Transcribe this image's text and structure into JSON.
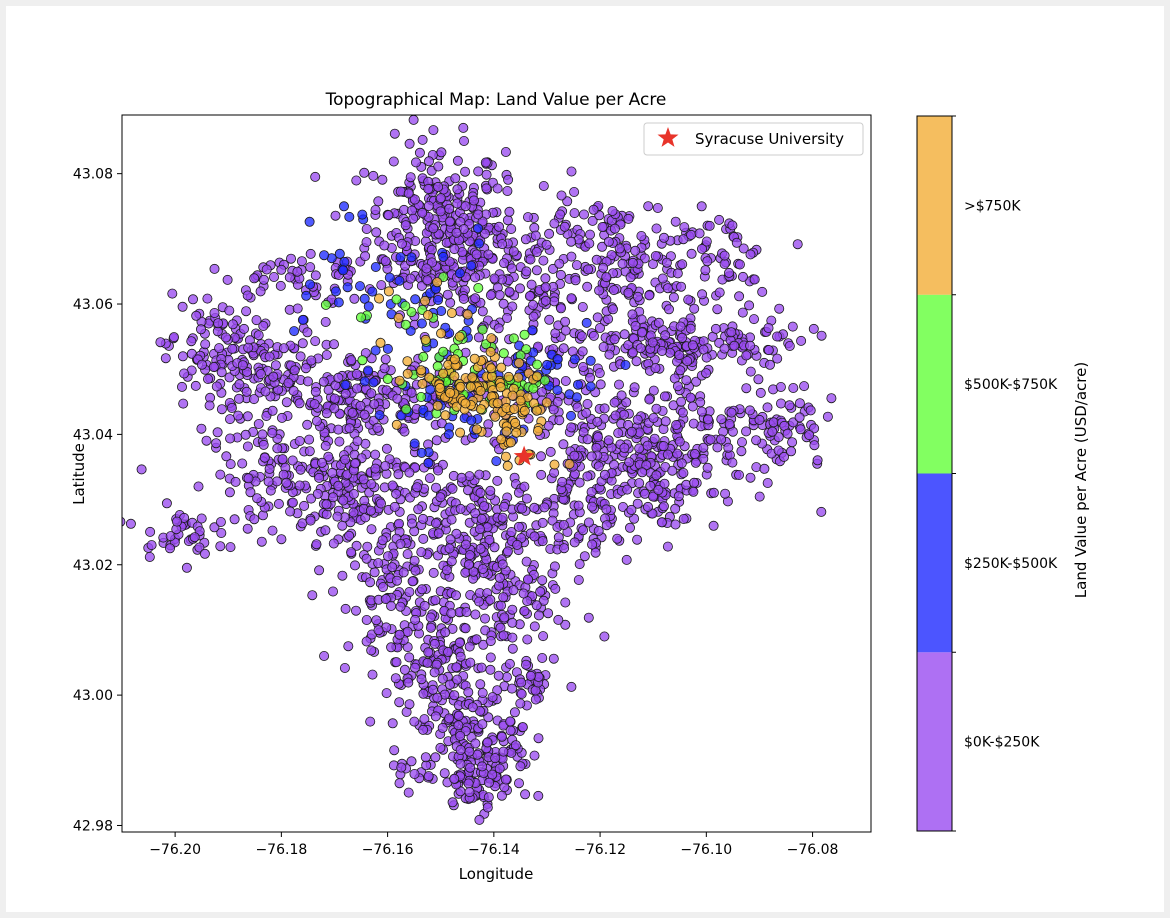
{
  "chart_data": {
    "type": "scatter",
    "title": "Topographical Map: Land Value per Acre",
    "xlabel": "Longitude",
    "ylabel": "Latitude",
    "xlim": [
      -76.21,
      -76.069
    ],
    "ylim": [
      42.979,
      43.089
    ],
    "xticks": [
      -76.2,
      -76.18,
      -76.16,
      -76.14,
      -76.12,
      -76.1,
      -76.08
    ],
    "xtick_labels": [
      "−76.20",
      "−76.18",
      "−76.16",
      "−76.14",
      "−76.12",
      "−76.10",
      "−76.08"
    ],
    "yticks": [
      42.98,
      43.0,
      43.02,
      43.04,
      43.06,
      43.08
    ],
    "ytick_labels": [
      "42.98",
      "43.00",
      "43.02",
      "43.04",
      "43.06",
      "43.08"
    ],
    "grid": false,
    "legend": {
      "position": "upper right",
      "entries": [
        "Syracuse University"
      ]
    },
    "landmark": {
      "name": "Syracuse University",
      "x": -76.1343,
      "y": 43.0366,
      "marker": "star",
      "color": "#e8342a"
    },
    "colorbar": {
      "label": "Land Value per Acre (USD/acre)",
      "bins": [
        {
          "label": "$0K-$250K",
          "color": "#9a4cf0"
        },
        {
          "label": "$250K-$500K",
          "color": "#1f2bff"
        },
        {
          "label": "$500K-$750K",
          "color": "#63ff3a"
        },
        {
          "label": ">$750K",
          "color": "#f3ae37"
        }
      ]
    },
    "series": [
      {
        "category": "$0K-$250K",
        "color": "#9a4cf0",
        "clusters": [
          {
            "x": -76.151,
            "y": 43.072,
            "sx": 0.0065,
            "sy": 0.0065,
            "n": 260
          },
          {
            "x": -76.143,
            "y": 43.067,
            "sx": 0.006,
            "sy": 0.0055,
            "n": 120
          },
          {
            "x": -76.113,
            "y": 43.064,
            "sx": 0.0065,
            "sy": 0.0045,
            "n": 120
          },
          {
            "x": -76.097,
            "y": 43.066,
            "sx": 0.0045,
            "sy": 0.004,
            "n": 60
          },
          {
            "x": -76.108,
            "y": 43.053,
            "sx": 0.01,
            "sy": 0.0022,
            "n": 120
          },
          {
            "x": -76.095,
            "y": 43.055,
            "sx": 0.007,
            "sy": 0.0015,
            "n": 50
          },
          {
            "x": -76.193,
            "y": 43.052,
            "sx": 0.0045,
            "sy": 0.005,
            "n": 110
          },
          {
            "x": -76.18,
            "y": 43.049,
            "sx": 0.005,
            "sy": 0.004,
            "n": 90
          },
          {
            "x": -76.168,
            "y": 43.045,
            "sx": 0.005,
            "sy": 0.004,
            "n": 90
          },
          {
            "x": -76.18,
            "y": 43.034,
            "sx": 0.007,
            "sy": 0.004,
            "n": 110
          },
          {
            "x": -76.164,
            "y": 43.03,
            "sx": 0.008,
            "sy": 0.005,
            "n": 180
          },
          {
            "x": -76.142,
            "y": 43.026,
            "sx": 0.007,
            "sy": 0.005,
            "n": 180
          },
          {
            "x": -76.124,
            "y": 43.029,
            "sx": 0.006,
            "sy": 0.006,
            "n": 120
          },
          {
            "x": -76.116,
            "y": 43.038,
            "sx": 0.0055,
            "sy": 0.004,
            "n": 110
          },
          {
            "x": -76.101,
            "y": 43.04,
            "sx": 0.008,
            "sy": 0.0055,
            "n": 140
          },
          {
            "x": -76.086,
            "y": 43.042,
            "sx": 0.004,
            "sy": 0.0035,
            "n": 60
          },
          {
            "x": -76.107,
            "y": 43.031,
            "sx": 0.004,
            "sy": 0.003,
            "n": 40
          },
          {
            "x": -76.158,
            "y": 43.014,
            "sx": 0.005,
            "sy": 0.006,
            "n": 130
          },
          {
            "x": -76.139,
            "y": 43.014,
            "sx": 0.006,
            "sy": 0.005,
            "n": 110
          },
          {
            "x": -76.15,
            "y": 43.001,
            "sx": 0.0045,
            "sy": 0.006,
            "n": 140
          },
          {
            "x": -76.14,
            "y": 42.993,
            "sx": 0.0035,
            "sy": 0.005,
            "n": 100
          },
          {
            "x": -76.143,
            "y": 42.987,
            "sx": 0.003,
            "sy": 0.002,
            "n": 50
          },
          {
            "x": -76.133,
            "y": 43.002,
            "sx": 0.002,
            "sy": 0.002,
            "n": 30
          },
          {
            "x": -76.153,
            "y": 42.989,
            "sx": 0.004,
            "sy": 0.002,
            "n": 25
          },
          {
            "x": -76.2,
            "y": 43.025,
            "sx": 0.0035,
            "sy": 0.0018,
            "n": 40
          },
          {
            "x": -76.177,
            "y": 43.064,
            "sx": 0.0065,
            "sy": 0.0025,
            "n": 50
          },
          {
            "x": -76.13,
            "y": 43.046,
            "sx": 0.008,
            "sy": 0.0035,
            "n": 80
          },
          {
            "x": -76.158,
            "y": 43.045,
            "sx": 0.006,
            "sy": 0.004,
            "n": 80
          },
          {
            "x": -76.13,
            "y": 43.06,
            "sx": 0.006,
            "sy": 0.004,
            "n": 70
          },
          {
            "x": -76.123,
            "y": 43.07,
            "sx": 0.006,
            "sy": 0.004,
            "n": 60
          }
        ]
      },
      {
        "category": "$250K-$500K",
        "color": "#1f2bff",
        "clusters": [
          {
            "x": -76.155,
            "y": 43.058,
            "sx": 0.009,
            "sy": 0.007,
            "n": 55
          },
          {
            "x": -76.132,
            "y": 43.052,
            "sx": 0.009,
            "sy": 0.004,
            "n": 35
          },
          {
            "x": -76.15,
            "y": 43.042,
            "sx": 0.006,
            "sy": 0.003,
            "n": 28
          },
          {
            "x": -76.17,
            "y": 43.067,
            "sx": 0.004,
            "sy": 0.004,
            "n": 14
          }
        ]
      },
      {
        "category": "$500K-$750K",
        "color": "#63ff3a",
        "clusters": [
          {
            "x": -76.146,
            "y": 43.049,
            "sx": 0.005,
            "sy": 0.003,
            "n": 45
          },
          {
            "x": -76.135,
            "y": 43.048,
            "sx": 0.004,
            "sy": 0.003,
            "n": 22
          },
          {
            "x": -76.157,
            "y": 43.057,
            "sx": 0.006,
            "sy": 0.004,
            "n": 14
          }
        ]
      },
      {
        "category": ">$750K",
        "color": "#f3ae37",
        "clusters": [
          {
            "x": -76.145,
            "y": 43.047,
            "sx": 0.0055,
            "sy": 0.0028,
            "n": 90
          },
          {
            "x": -76.136,
            "y": 43.043,
            "sx": 0.004,
            "sy": 0.0025,
            "n": 40
          },
          {
            "x": -76.155,
            "y": 43.056,
            "sx": 0.006,
            "sy": 0.004,
            "n": 15
          },
          {
            "x": -76.135,
            "y": 43.037,
            "sx": 0.0015,
            "sy": 0.0018,
            "n": 8
          }
        ]
      }
    ]
  }
}
